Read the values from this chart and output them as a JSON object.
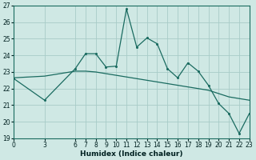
{
  "xlabel": "Humidex (Indice chaleur)",
  "background_color": "#cfe8e4",
  "grid_color": "#a8ccc8",
  "line_color": "#1a6b60",
  "xlim": [
    0,
    23
  ],
  "ylim": [
    19,
    27
  ],
  "yticks": [
    19,
    20,
    21,
    22,
    23,
    24,
    25,
    26,
    27
  ],
  "xticks": [
    0,
    3,
    6,
    7,
    8,
    9,
    10,
    11,
    12,
    13,
    14,
    15,
    16,
    17,
    18,
    19,
    20,
    21,
    22,
    23
  ],
  "line1_x": [
    0,
    3,
    6,
    7,
    8,
    9,
    10,
    11,
    12,
    13,
    14,
    15,
    16,
    17,
    18,
    19,
    20,
    21,
    22,
    23
  ],
  "line1_y": [
    22.6,
    21.3,
    23.2,
    24.1,
    24.1,
    23.3,
    23.35,
    26.8,
    24.5,
    25.05,
    24.7,
    23.2,
    22.65,
    23.55,
    23.05,
    22.2,
    21.1,
    20.5,
    19.3,
    20.5
  ],
  "line2_x": [
    0,
    3,
    6,
    7,
    8,
    9,
    10,
    11,
    12,
    13,
    14,
    15,
    16,
    17,
    18,
    19,
    20,
    21,
    22,
    23
  ],
  "line2_y": [
    22.65,
    22.75,
    23.05,
    23.05,
    23.0,
    22.9,
    22.8,
    22.7,
    22.6,
    22.5,
    22.4,
    22.3,
    22.2,
    22.1,
    22.0,
    21.9,
    21.7,
    21.5,
    21.4,
    21.3
  ]
}
